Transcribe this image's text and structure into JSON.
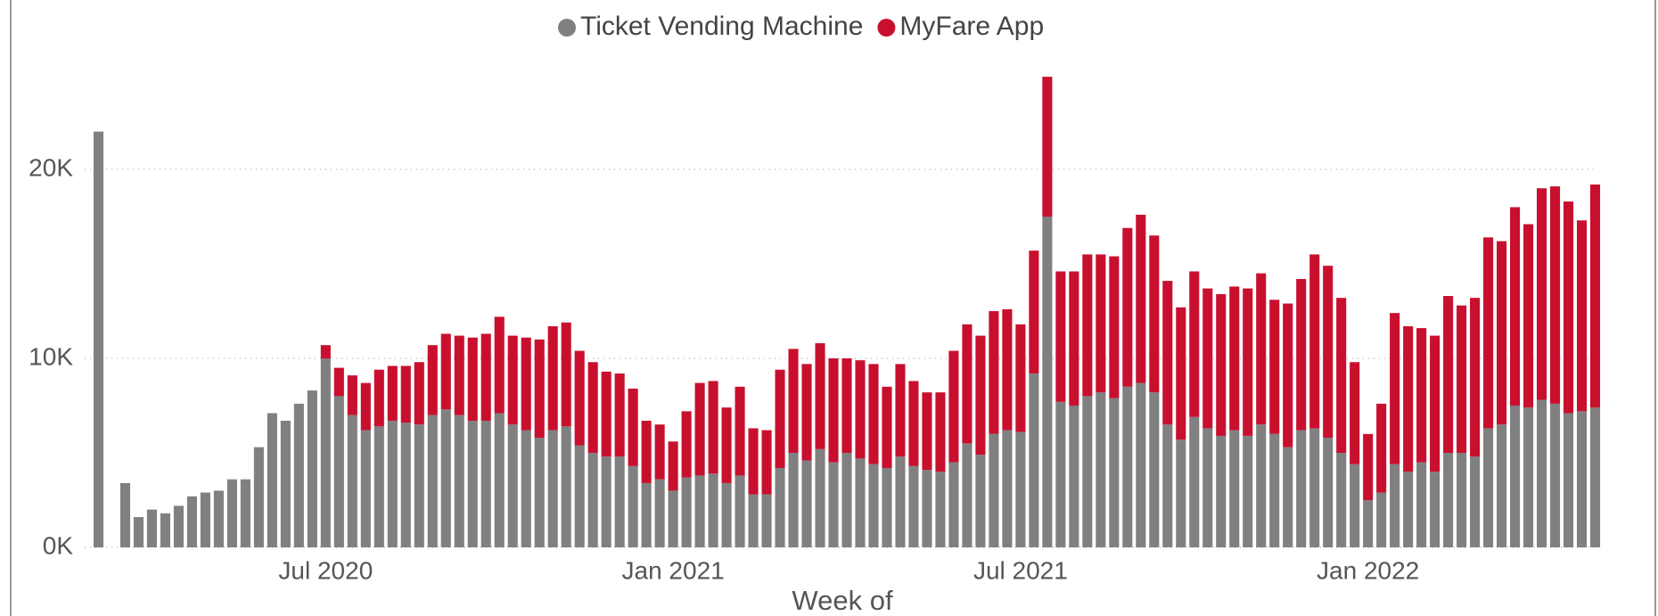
{
  "chart_data": {
    "type": "stacked_bar",
    "x_label": "Week of",
    "categories": [
      null,
      null,
      null,
      null,
      null,
      null,
      null,
      null,
      null,
      null,
      null,
      null,
      null,
      null,
      null,
      null,
      null,
      "Jul 2020",
      null,
      null,
      null,
      null,
      null,
      null,
      null,
      null,
      null,
      null,
      null,
      null,
      null,
      null,
      null,
      null,
      null,
      null,
      null,
      null,
      null,
      null,
      null,
      null,
      null,
      "Jan 2021",
      null,
      null,
      null,
      null,
      null,
      null,
      null,
      null,
      null,
      null,
      null,
      null,
      null,
      null,
      null,
      null,
      null,
      null,
      null,
      null,
      null,
      null,
      null,
      null,
      null,
      "Jul 2021",
      null,
      null,
      null,
      null,
      null,
      null,
      null,
      null,
      null,
      null,
      null,
      null,
      null,
      null,
      null,
      null,
      null,
      null,
      null,
      null,
      null,
      null,
      null,
      null,
      null,
      "Jan 2022",
      null,
      null,
      null,
      null,
      null,
      null,
      null,
      null,
      null,
      null,
      null,
      null,
      null,
      null,
      null,
      null,
      null
    ],
    "series": [
      {
        "name": "Ticket Vending Machine",
        "color": "#808080",
        "values": [
          22000,
          null,
          3400,
          1600,
          2000,
          1800,
          2200,
          2700,
          2900,
          3000,
          3600,
          3600,
          5300,
          7100,
          6700,
          7600,
          8300,
          10000,
          8000,
          7000,
          6200,
          6400,
          6700,
          6600,
          6500,
          7000,
          7300,
          7000,
          6700,
          6700,
          7100,
          6500,
          6200,
          5800,
          6200,
          6400,
          5400,
          5000,
          4800,
          4800,
          4300,
          3400,
          3600,
          3000,
          3700,
          3800,
          3900,
          3400,
          3800,
          2800,
          2800,
          4200,
          5000,
          4600,
          5200,
          4500,
          5000,
          4700,
          4400,
          4200,
          4800,
          4300,
          4100,
          4000,
          4500,
          5500,
          4900,
          6000,
          6200,
          6100,
          9200,
          17500,
          7700,
          7500,
          8000,
          8200,
          7900,
          8500,
          8700,
          8200,
          6500,
          5700,
          6900,
          6300,
          5900,
          6200,
          5900,
          6500,
          6000,
          5300,
          6200,
          6300,
          5800,
          5000,
          4400,
          2500,
          2900,
          4400,
          4000,
          4500,
          4000,
          5000,
          5000,
          4800,
          6300,
          6500,
          7500,
          7400,
          7800,
          7600,
          7100,
          7200,
          7400
        ]
      },
      {
        "name": "MyFare App",
        "color": "#c8102e",
        "values": [
          0,
          null,
          0,
          0,
          0,
          0,
          0,
          0,
          0,
          0,
          0,
          0,
          0,
          0,
          0,
          0,
          0,
          700,
          1500,
          2100,
          2500,
          3000,
          2900,
          3000,
          3300,
          3700,
          4000,
          4200,
          4400,
          4600,
          5100,
          4700,
          4900,
          5200,
          5500,
          5500,
          5000,
          4800,
          4500,
          4400,
          4100,
          3300,
          2900,
          2600,
          3500,
          4900,
          4900,
          4000,
          4700,
          3500,
          3400,
          5200,
          5500,
          5100,
          5600,
          5500,
          5000,
          5200,
          5300,
          4300,
          4900,
          4500,
          4100,
          4200,
          5900,
          6300,
          6300,
          6500,
          6400,
          5700,
          6500,
          7400,
          6900,
          7100,
          7500,
          7300,
          7500,
          8400,
          8900,
          8300,
          7600,
          7000,
          7700,
          7400,
          7500,
          7600,
          7800,
          8000,
          7100,
          7600,
          8000,
          9200,
          9100,
          8200,
          5400,
          3500,
          4700,
          8000,
          7700,
          7100,
          7200,
          8300,
          7800,
          8400,
          10100,
          9700,
          10500,
          9700,
          11200,
          11500,
          11200,
          10100,
          11800
        ]
      }
    ],
    "ylim": [
      0,
      25000
    ],
    "yticks": [
      {
        "value": 0,
        "label": "0K"
      },
      {
        "value": 10000,
        "label": "10K"
      },
      {
        "value": 20000,
        "label": "20K"
      }
    ],
    "grid": true,
    "legend": "top"
  }
}
